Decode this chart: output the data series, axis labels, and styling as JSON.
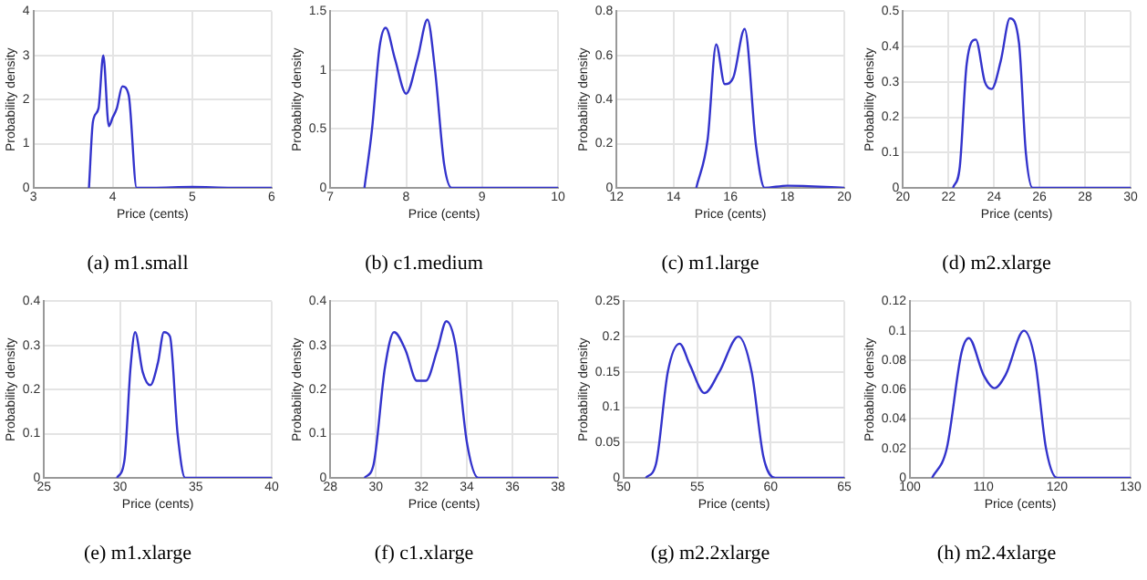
{
  "chart_data": [
    {
      "type": "line",
      "title": "(a) m1.small",
      "xlabel": "Price (cents)",
      "ylabel": "Probability density",
      "x": [
        3.7,
        3.75,
        3.82,
        3.88,
        3.95,
        4.0,
        4.05,
        4.12,
        4.2,
        4.3,
        4.5,
        5.0,
        5.5,
        6.0
      ],
      "color": "#3333cc",
      "values": [
        0,
        1.5,
        1.8,
        3.0,
        1.4,
        1.6,
        1.8,
        2.3,
        2.1,
        0,
        0,
        0.02,
        0,
        0
      ],
      "xlim": [
        3,
        6
      ],
      "xticks": [
        3,
        4,
        5,
        6
      ],
      "ylim": [
        0,
        4
      ],
      "yticks": [
        0,
        1,
        2,
        3,
        4
      ],
      "grid": true
    },
    {
      "type": "line",
      "title": "(b) c1.medium",
      "xlabel": "Price (cents)",
      "ylabel": "Probability density",
      "x": [
        7.45,
        7.55,
        7.65,
        7.73,
        7.85,
        8.0,
        8.15,
        8.28,
        8.38,
        8.5,
        8.6,
        9.0,
        10.0
      ],
      "color": "#3333cc",
      "values": [
        0,
        0.5,
        1.2,
        1.36,
        1.1,
        0.8,
        1.1,
        1.43,
        1.0,
        0.2,
        0,
        0,
        0
      ],
      "xlim": [
        7,
        10
      ],
      "xticks": [
        7,
        8,
        9,
        10
      ],
      "ylim": [
        0,
        1.5
      ],
      "yticks": [
        0,
        0.5,
        1,
        1.5
      ],
      "grid": true
    },
    {
      "type": "line",
      "title": "(c) m1.large",
      "xlabel": "Price (cents)",
      "ylabel": "Probability density",
      "x": [
        14.8,
        15.2,
        15.5,
        15.8,
        16.1,
        16.5,
        16.9,
        17.2,
        18,
        20
      ],
      "color": "#3333cc",
      "values": [
        0,
        0.22,
        0.65,
        0.47,
        0.5,
        0.72,
        0.19,
        0,
        0.01,
        0
      ],
      "xlim": [
        12,
        20
      ],
      "xticks": [
        12,
        14,
        16,
        18,
        20
      ],
      "ylim": [
        0,
        0.8
      ],
      "yticks": [
        0,
        0.2,
        0.4,
        0.6,
        0.8
      ],
      "grid": true
    },
    {
      "type": "line",
      "title": "(d) m2.xlarge",
      "xlabel": "Price (cents)",
      "ylabel": "Probability density",
      "x": [
        22.2,
        22.5,
        22.8,
        23.2,
        23.6,
        23.9,
        24.3,
        24.7,
        25.1,
        25.4,
        25.7,
        30
      ],
      "color": "#3333cc",
      "values": [
        0,
        0.06,
        0.35,
        0.42,
        0.3,
        0.28,
        0.36,
        0.48,
        0.41,
        0.1,
        0,
        0
      ],
      "xlim": [
        20,
        30
      ],
      "xticks": [
        20,
        22,
        24,
        26,
        28,
        30
      ],
      "ylim": [
        0,
        0.5
      ],
      "yticks": [
        0,
        0.1,
        0.2,
        0.3,
        0.4,
        0.5
      ],
      "grid": true
    },
    {
      "type": "line",
      "title": "(e) m1.xlarge",
      "xlabel": "Price (cents)",
      "ylabel": "Probability density",
      "x": [
        29.8,
        30.3,
        30.7,
        31.0,
        31.5,
        32.0,
        32.5,
        32.9,
        33.3,
        33.8,
        34.3,
        40
      ],
      "color": "#3333cc",
      "values": [
        0,
        0.04,
        0.25,
        0.33,
        0.24,
        0.21,
        0.26,
        0.33,
        0.32,
        0.1,
        0,
        0
      ],
      "xlim": [
        25,
        40
      ],
      "xticks": [
        25,
        30,
        35,
        40
      ],
      "ylim": [
        0,
        0.4
      ],
      "yticks": [
        0,
        0.1,
        0.2,
        0.3,
        0.4
      ],
      "grid": true
    },
    {
      "type": "line",
      "title": "(f) c1.xlarge",
      "xlabel": "Price (cents)",
      "ylabel": "Probability density",
      "x": [
        29.5,
        29.9,
        30.4,
        30.8,
        31.3,
        31.8,
        32.2,
        32.7,
        33.1,
        33.5,
        34.0,
        34.5,
        38
      ],
      "color": "#3333cc",
      "values": [
        0,
        0.03,
        0.25,
        0.33,
        0.29,
        0.22,
        0.22,
        0.29,
        0.355,
        0.3,
        0.08,
        0,
        0
      ],
      "xlim": [
        28,
        38
      ],
      "xticks": [
        28,
        30,
        32,
        34,
        36,
        38
      ],
      "ylim": [
        0,
        0.4
      ],
      "yticks": [
        0,
        0.1,
        0.2,
        0.3,
        0.4
      ],
      "grid": true
    },
    {
      "type": "line",
      "title": "(g) m2.2xlarge",
      "xlabel": "Price (cents)",
      "ylabel": "Probability density",
      "x": [
        51.5,
        52.2,
        53.0,
        53.8,
        54.5,
        55.5,
        56.5,
        57.8,
        58.7,
        59.5,
        60.3,
        65
      ],
      "color": "#3333cc",
      "values": [
        0,
        0.02,
        0.15,
        0.19,
        0.16,
        0.12,
        0.15,
        0.2,
        0.15,
        0.03,
        0,
        0
      ],
      "xlim": [
        50,
        65
      ],
      "xticks": [
        50,
        55,
        60,
        65
      ],
      "ylim": [
        0,
        0.25
      ],
      "yticks": [
        0,
        0.05,
        0.1,
        0.15,
        0.2,
        0.25
      ],
      "grid": true
    },
    {
      "type": "line",
      "title": "(h) m2.4xlarge",
      "xlabel": "Price (cents)",
      "ylabel": "Probability density",
      "x": [
        103,
        105,
        107,
        108,
        110,
        111.5,
        113,
        115.5,
        117,
        118.5,
        120,
        130
      ],
      "color": "#3333cc",
      "values": [
        0,
        0.02,
        0.085,
        0.095,
        0.07,
        0.061,
        0.07,
        0.1,
        0.08,
        0.02,
        0,
        0
      ],
      "xlim": [
        100,
        130
      ],
      "xticks": [
        100,
        110,
        120,
        130
      ],
      "ylim": [
        0,
        0.12
      ],
      "yticks": [
        0,
        0.02,
        0.04,
        0.06,
        0.08,
        0.1,
        0.12
      ],
      "grid": true
    }
  ]
}
